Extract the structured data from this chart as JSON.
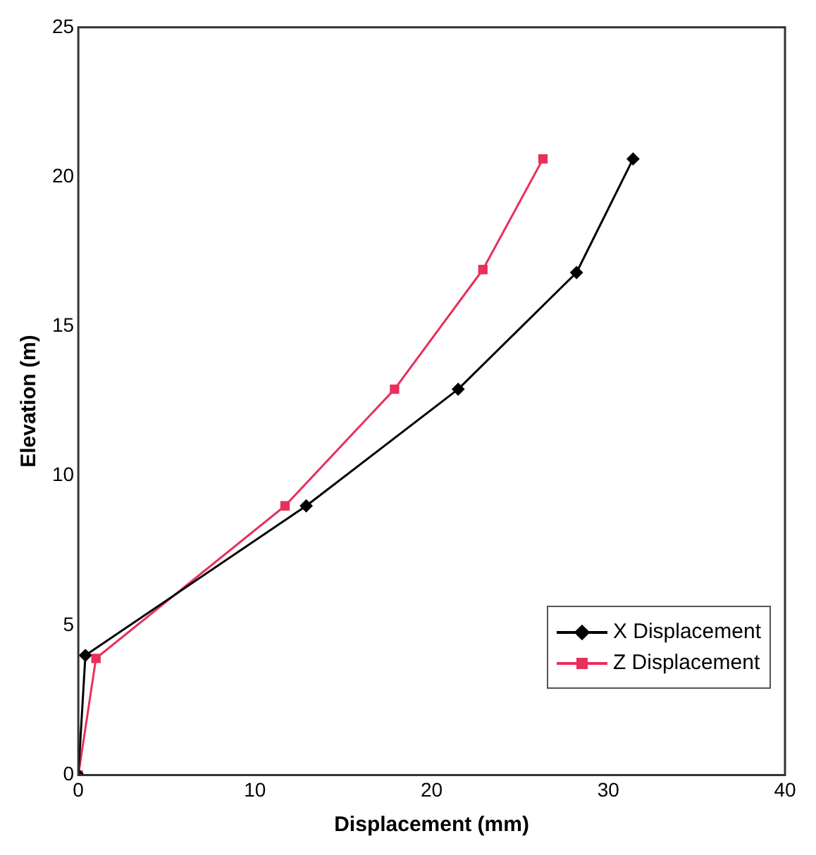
{
  "chart_data": {
    "type": "line",
    "xlabel": "Displacement (mm)",
    "ylabel": "Elevation (m)",
    "xlim": [
      0,
      40
    ],
    "xticks": [
      0,
      10,
      20,
      30,
      40
    ],
    "ylim": [
      0,
      25
    ],
    "yticks": [
      0,
      5,
      10,
      15,
      20,
      25
    ],
    "grid": false,
    "legend": "bottom right",
    "line_style": "solid",
    "series": [
      {
        "name": "X Displacement",
        "color": "#000000",
        "marker": "diamond",
        "x": [
          0,
          0.4,
          12.9,
          21.5,
          28.2,
          31.4
        ],
        "values": [
          0,
          4.0,
          9.0,
          12.9,
          16.8,
          20.6
        ]
      },
      {
        "name": "Z Displacement",
        "color": "#e8305a",
        "marker": "square",
        "x": [
          0,
          1.0,
          11.7,
          17.9,
          22.9,
          26.3
        ],
        "values": [
          0,
          3.9,
          9.0,
          12.9,
          16.9,
          20.6
        ]
      }
    ]
  }
}
